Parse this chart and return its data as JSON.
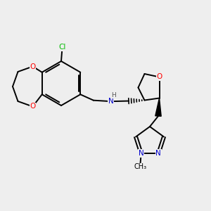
{
  "bg_color": "#eeeeee",
  "atom_colors": {
    "O": "#ff0000",
    "N": "#0000cc",
    "Cl": "#00bb00",
    "C": "#000000",
    "H": "#555555"
  },
  "bond_color": "#000000",
  "bond_width": 1.4,
  "title": ""
}
